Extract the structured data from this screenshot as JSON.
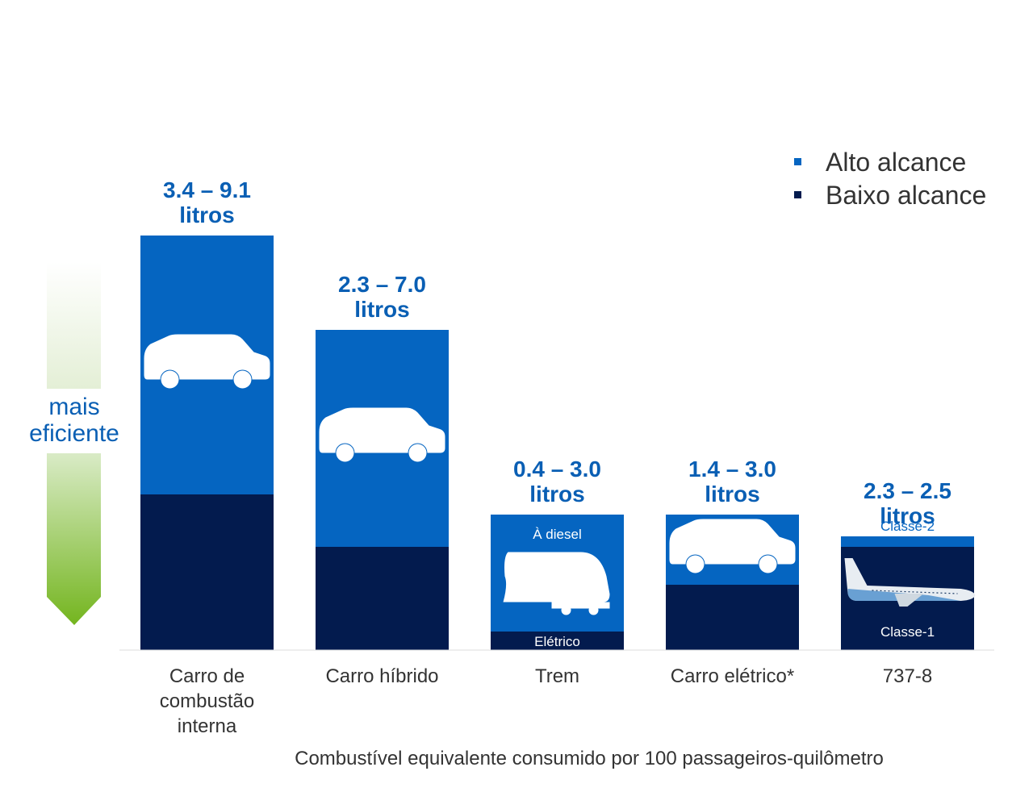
{
  "colors": {
    "high": "#0565c1",
    "low": "#031b4e",
    "label": "#0a5fb4",
    "text": "#333333",
    "arrow": "#7ab82a"
  },
  "efficiency": {
    "line1": "mais",
    "line2": "eficiente"
  },
  "legend": [
    {
      "label": "Alto alcance",
      "color": "#0565c1"
    },
    {
      "label": "Baixo alcance",
      "color": "#031b4e"
    }
  ],
  "chart_data": {
    "type": "bar",
    "xlabel": "Combustível equivalente consumido por 100 passageiros-quilômetro",
    "ylabel": "",
    "ylim": [
      0,
      10
    ],
    "grid": false,
    "legend_position": "top-right",
    "categories": [
      "Carro de combustão interna",
      "Carro híbrido",
      "Trem",
      "Carro elétrico*",
      "737-8"
    ],
    "series": [
      {
        "name": "Baixo alcance",
        "values": [
          3.4,
          2.3,
          0.4,
          1.4,
          2.3
        ]
      },
      {
        "name": "Alto alcance",
        "values": [
          9.1,
          7.0,
          3.0,
          3.0,
          2.5
        ]
      }
    ],
    "bars": [
      {
        "category_lines": [
          "Carro de",
          "combustão",
          "interna"
        ],
        "label_lines": [
          "3.4 – 9.1",
          "litros"
        ],
        "low": 3.4,
        "high": 9.1,
        "icon": "car-icon",
        "inner_high": "",
        "inner_low": ""
      },
      {
        "category_lines": [
          "Carro híbrido"
        ],
        "label_lines": [
          "2.3 – 7.0",
          "litros"
        ],
        "low": 2.3,
        "high": 7.0,
        "icon": "car-icon",
        "inner_high": "",
        "inner_low": ""
      },
      {
        "category_lines": [
          "Trem"
        ],
        "label_lines": [
          "0.4 – 3.0",
          "litros"
        ],
        "low": 0.4,
        "high": 3.0,
        "icon": "train-icon",
        "inner_high": "À diesel",
        "inner_low": "Elétrico"
      },
      {
        "category_lines": [
          "Carro elétrico*"
        ],
        "label_lines": [
          "1.4 – 3.0",
          "litros"
        ],
        "low": 1.4,
        "high": 3.0,
        "icon": "car-icon",
        "inner_high": "",
        "inner_low": ""
      },
      {
        "category_lines": [
          "737-8"
        ],
        "label_lines": [
          "2.3 – 2.5",
          "litros"
        ],
        "low": 2.3,
        "high": 2.5,
        "icon": "airplane-icon",
        "inner_high": "Classe-2",
        "inner_low": "Classe-1"
      }
    ]
  }
}
